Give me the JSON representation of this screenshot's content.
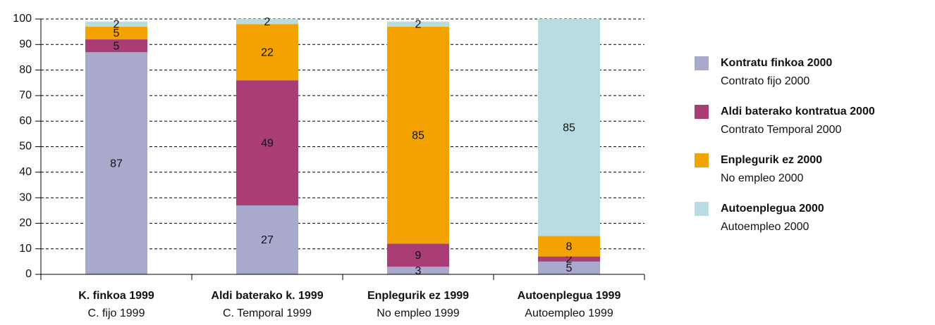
{
  "chart_data": {
    "type": "stacked_bar",
    "categories": [
      "K. finkoa 1999",
      "Aldi baterako k. 1999",
      "Enplegurik ez 1999",
      "Autoenplegua 1999"
    ],
    "categories_es": [
      "C. fijo 1999",
      "C. Temporal 1999",
      "No empleo 1999",
      "Autoempleo 1999"
    ],
    "series": [
      {
        "name": "Kontratu finkoa 2000",
        "subtitle": "Contrato fijo 2000",
        "color": "#a9a9cc",
        "values": [
          87,
          27,
          3,
          5
        ]
      },
      {
        "name": "Aldi baterako kontratua 2000",
        "subtitle": "Contrato Temporal 2000",
        "color": "#a83e75",
        "values": [
          5,
          49,
          9,
          2
        ]
      },
      {
        "name": "Enplegurik ez 2000",
        "subtitle": "No empleo 2000",
        "color": "#f3a200",
        "values": [
          5,
          22,
          85,
          8
        ]
      },
      {
        "name": "Autoenplegua 2000",
        "subtitle": "Autoempleo 2000",
        "color": "#b7dde3",
        "values": [
          2,
          2,
          2,
          85
        ]
      }
    ],
    "ylim": [
      0,
      100
    ],
    "yticks": [
      0,
      10,
      20,
      30,
      40,
      50,
      60,
      70,
      80,
      90,
      100
    ],
    "grid": true,
    "legend": "right"
  }
}
